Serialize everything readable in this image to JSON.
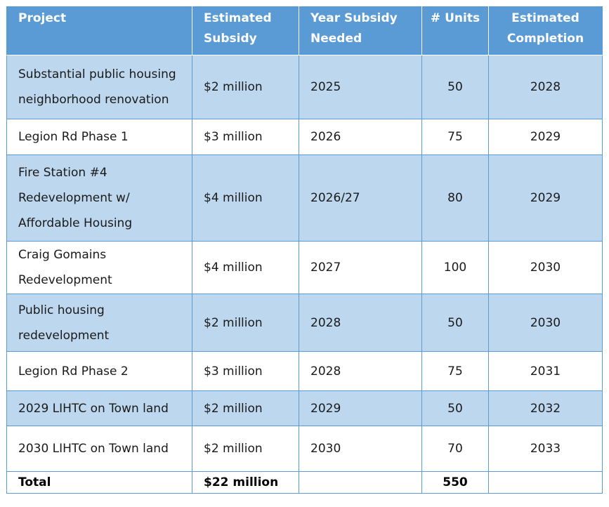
{
  "table": {
    "headers": [
      "Project",
      "Estimated Subsidy",
      "Year Subsidy Needed",
      "# Units",
      "Estimated Completion"
    ],
    "rows": [
      {
        "project": "Substantial public housing neighborhood renovation",
        "subsidy": "$2 million",
        "year": "2025",
        "units": "50",
        "completion": "2028"
      },
      {
        "project": "Legion Rd Phase 1",
        "subsidy": "$3 million",
        "year": "2026",
        "units": "75",
        "completion": "2029"
      },
      {
        "project": "Fire Station #4 Redevelopment w/ Affordable Housing",
        "subsidy": "$4 million",
        "year": "2026/27",
        "units": "80",
        "completion": "2029"
      },
      {
        "project": "Craig Gomains Redevelopment",
        "subsidy": "$4 million",
        "year": "2027",
        "units": "100",
        "completion": "2030"
      },
      {
        "project": "Public housing redevelopment",
        "subsidy": "$2 million",
        "year": "2028",
        "units": "50",
        "completion": "2030"
      },
      {
        "project": "Legion Rd Phase 2",
        "subsidy": "$3 million",
        "year": "2028",
        "units": "75",
        "completion": "2031"
      },
      {
        "project": "2029 LIHTC on Town land",
        "subsidy": "$2 million",
        "year": "2029",
        "units": "50",
        "completion": "2032"
      },
      {
        "project": "2030 LIHTC on Town land",
        "subsidy": "$2 million",
        "year": "2030",
        "units": "70",
        "completion": "2033"
      }
    ],
    "total": {
      "label": "Total",
      "subsidy": "$22 million",
      "year": "",
      "units": "550",
      "completion": ""
    }
  },
  "colors": {
    "header_bg": "#5b9bd5",
    "shaded_row_bg": "#bdd7ee",
    "plain_row_bg": "#ffffff"
  }
}
